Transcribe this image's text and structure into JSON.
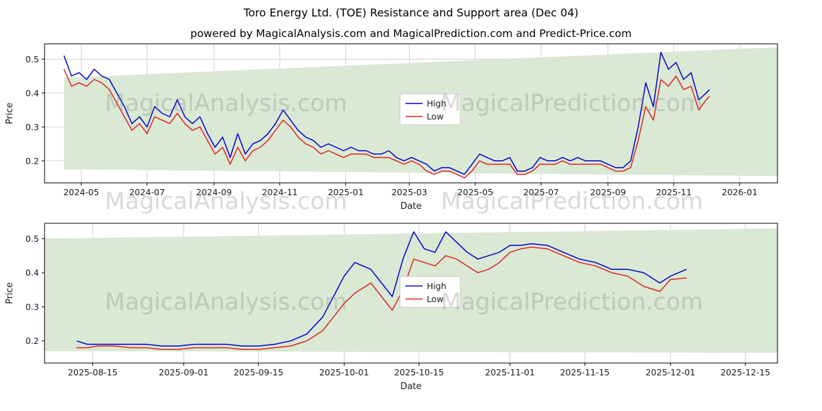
{
  "figure": {
    "title": "Toro Energy Ltd. (TOE) Resistance and Support area (Dec 04)",
    "subtitle": "powered by MagicalAnalysis.com and MagicalPrediction.com and Predict-Price.com"
  },
  "watermarks": {
    "analysis": "MagicalAnalysis.com",
    "prediction": "MagicalPrediction.com"
  },
  "colors": {
    "high": "#0000cc",
    "low": "#e02222",
    "band": "#d9e9d4",
    "grid": "#cccccc",
    "axis": "#000000",
    "tick_text": "#1a1a1a"
  },
  "chart_data": [
    {
      "type": "line",
      "xlabel": "Date",
      "ylabel": "Price",
      "xlim": [
        "2024-03-28",
        "2026-02-05"
      ],
      "ylim": [
        0.135,
        0.545
      ],
      "grid": true,
      "legend": {
        "x": 0.485,
        "y": 0.36
      },
      "xticks": [
        {
          "v": "2024-05-01",
          "label": "2024-05"
        },
        {
          "v": "2024-07-01",
          "label": "2024-07"
        },
        {
          "v": "2024-09-01",
          "label": "2024-09"
        },
        {
          "v": "2024-11-01",
          "label": "2024-11"
        },
        {
          "v": "2025-01-01",
          "label": "2025-01"
        },
        {
          "v": "2025-03-01",
          "label": "2025-03"
        },
        {
          "v": "2025-05-01",
          "label": "2025-05"
        },
        {
          "v": "2025-07-01",
          "label": "2025-07"
        },
        {
          "v": "2025-09-01",
          "label": "2025-09"
        },
        {
          "v": "2025-11-01",
          "label": "2025-11"
        },
        {
          "v": "2026-01-01",
          "label": "2026-01"
        }
      ],
      "yticks": [
        0.2,
        0.3,
        0.4,
        0.5
      ],
      "band": {
        "x": [
          "2024-04-15",
          "2026-02-05"
        ],
        "top": [
          0.445,
          0.535
        ],
        "bottom": [
          0.175,
          0.155
        ]
      },
      "x": [
        "2024-04-15",
        "2024-04-22",
        "2024-04-29",
        "2024-05-06",
        "2024-05-13",
        "2024-05-20",
        "2024-05-27",
        "2024-06-03",
        "2024-06-10",
        "2024-06-17",
        "2024-06-24",
        "2024-07-01",
        "2024-07-08",
        "2024-07-15",
        "2024-07-22",
        "2024-07-29",
        "2024-08-05",
        "2024-08-12",
        "2024-08-19",
        "2024-08-26",
        "2024-09-02",
        "2024-09-09",
        "2024-09-16",
        "2024-09-23",
        "2024-09-30",
        "2024-10-07",
        "2024-10-14",
        "2024-10-21",
        "2024-10-28",
        "2024-11-04",
        "2024-11-11",
        "2024-11-18",
        "2024-11-25",
        "2024-12-02",
        "2024-12-09",
        "2024-12-16",
        "2024-12-23",
        "2024-12-30",
        "2025-01-06",
        "2025-01-13",
        "2025-01-20",
        "2025-01-27",
        "2025-02-03",
        "2025-02-10",
        "2025-02-17",
        "2025-02-24",
        "2025-03-03",
        "2025-03-10",
        "2025-03-17",
        "2025-03-24",
        "2025-03-31",
        "2025-04-07",
        "2025-04-14",
        "2025-04-21",
        "2025-04-28",
        "2025-05-05",
        "2025-05-12",
        "2025-05-19",
        "2025-05-26",
        "2025-06-02",
        "2025-06-09",
        "2025-06-16",
        "2025-06-23",
        "2025-06-30",
        "2025-07-07",
        "2025-07-14",
        "2025-07-21",
        "2025-07-28",
        "2025-08-04",
        "2025-08-11",
        "2025-08-18",
        "2025-08-25",
        "2025-09-01",
        "2025-09-08",
        "2025-09-15",
        "2025-09-22",
        "2025-09-29",
        "2025-10-06",
        "2025-10-13",
        "2025-10-20",
        "2025-10-27",
        "2025-11-03",
        "2025-11-10",
        "2025-11-17",
        "2025-11-24",
        "2025-12-01",
        "2025-12-04"
      ],
      "series": [
        {
          "name": "High",
          "color": "high",
          "values": [
            0.51,
            0.45,
            0.46,
            0.44,
            0.47,
            0.45,
            0.44,
            0.4,
            0.36,
            0.31,
            0.33,
            0.3,
            0.36,
            0.34,
            0.33,
            0.38,
            0.33,
            0.31,
            0.33,
            0.28,
            0.24,
            0.27,
            0.21,
            0.28,
            0.22,
            0.25,
            0.26,
            0.28,
            0.31,
            0.35,
            0.32,
            0.29,
            0.27,
            0.26,
            0.24,
            0.25,
            0.24,
            0.23,
            0.24,
            0.23,
            0.23,
            0.22,
            0.22,
            0.23,
            0.21,
            0.2,
            0.21,
            0.2,
            0.19,
            0.17,
            0.18,
            0.18,
            0.17,
            0.16,
            0.19,
            0.22,
            0.21,
            0.2,
            0.2,
            0.21,
            0.17,
            0.17,
            0.18,
            0.21,
            0.2,
            0.2,
            0.21,
            0.2,
            0.21,
            0.2,
            0.2,
            0.2,
            0.19,
            0.18,
            0.18,
            0.2,
            0.3,
            0.43,
            0.36,
            0.52,
            0.47,
            0.49,
            0.44,
            0.46,
            0.38,
            0.4,
            0.41
          ]
        },
        {
          "name": "Low",
          "color": "low",
          "values": [
            0.47,
            0.42,
            0.43,
            0.42,
            0.44,
            0.43,
            0.41,
            0.37,
            0.33,
            0.29,
            0.31,
            0.28,
            0.33,
            0.32,
            0.31,
            0.34,
            0.31,
            0.29,
            0.3,
            0.26,
            0.22,
            0.24,
            0.19,
            0.24,
            0.2,
            0.23,
            0.24,
            0.26,
            0.29,
            0.32,
            0.3,
            0.27,
            0.25,
            0.24,
            0.22,
            0.23,
            0.22,
            0.21,
            0.22,
            0.22,
            0.22,
            0.21,
            0.21,
            0.21,
            0.2,
            0.19,
            0.2,
            0.19,
            0.17,
            0.16,
            0.17,
            0.17,
            0.16,
            0.15,
            0.17,
            0.2,
            0.19,
            0.19,
            0.19,
            0.19,
            0.16,
            0.16,
            0.17,
            0.19,
            0.19,
            0.19,
            0.2,
            0.19,
            0.19,
            0.19,
            0.19,
            0.19,
            0.18,
            0.17,
            0.17,
            0.18,
            0.26,
            0.36,
            0.32,
            0.44,
            0.42,
            0.45,
            0.41,
            0.42,
            0.35,
            0.38,
            0.39
          ]
        }
      ]
    },
    {
      "type": "line",
      "xlabel": "Date",
      "ylabel": "Price",
      "xlim": [
        "2025-08-06",
        "2025-12-21"
      ],
      "ylim": [
        0.135,
        0.545
      ],
      "grid": true,
      "legend": {
        "x": 0.485,
        "y": 0.38
      },
      "xticks": [
        {
          "v": "2025-08-15",
          "label": "2025-08-15"
        },
        {
          "v": "2025-09-01",
          "label": "2025-09-01"
        },
        {
          "v": "2025-09-15",
          "label": "2025-09-15"
        },
        {
          "v": "2025-10-01",
          "label": "2025-10-01"
        },
        {
          "v": "2025-10-15",
          "label": "2025-10-15"
        },
        {
          "v": "2025-11-01",
          "label": "2025-11-01"
        },
        {
          "v": "2025-11-15",
          "label": "2025-11-15"
        },
        {
          "v": "2025-12-01",
          "label": "2025-12-01"
        },
        {
          "v": "2025-12-15",
          "label": "2025-12-15"
        }
      ],
      "yticks": [
        0.2,
        0.3,
        0.4,
        0.5
      ],
      "band": {
        "x": [
          "2025-08-06",
          "2025-12-21"
        ],
        "top": [
          0.5,
          0.53
        ],
        "bottom": [
          0.17,
          0.165
        ]
      },
      "x": [
        "2025-08-12",
        "2025-08-14",
        "2025-08-16",
        "2025-08-19",
        "2025-08-22",
        "2025-08-25",
        "2025-08-28",
        "2025-08-31",
        "2025-09-03",
        "2025-09-06",
        "2025-09-09",
        "2025-09-12",
        "2025-09-15",
        "2025-09-18",
        "2025-09-21",
        "2025-09-24",
        "2025-09-27",
        "2025-09-29",
        "2025-10-01",
        "2025-10-03",
        "2025-10-06",
        "2025-10-08",
        "2025-10-10",
        "2025-10-12",
        "2025-10-14",
        "2025-10-16",
        "2025-10-18",
        "2025-10-20",
        "2025-10-22",
        "2025-10-24",
        "2025-10-26",
        "2025-10-28",
        "2025-10-30",
        "2025-11-01",
        "2025-11-03",
        "2025-11-05",
        "2025-11-08",
        "2025-11-11",
        "2025-11-14",
        "2025-11-17",
        "2025-11-20",
        "2025-11-23",
        "2025-11-26",
        "2025-11-29",
        "2025-12-01",
        "2025-12-04"
      ],
      "series": [
        {
          "name": "High",
          "color": "high",
          "values": [
            0.2,
            0.19,
            0.19,
            0.19,
            0.19,
            0.19,
            0.185,
            0.185,
            0.19,
            0.19,
            0.19,
            0.185,
            0.185,
            0.19,
            0.2,
            0.22,
            0.27,
            0.33,
            0.39,
            0.43,
            0.41,
            0.37,
            0.33,
            0.44,
            0.52,
            0.47,
            0.46,
            0.52,
            0.49,
            0.46,
            0.44,
            0.45,
            0.46,
            0.48,
            0.48,
            0.485,
            0.48,
            0.46,
            0.44,
            0.43,
            0.41,
            0.41,
            0.4,
            0.37,
            0.39,
            0.41
          ]
        },
        {
          "name": "Low",
          "color": "low",
          "values": [
            0.18,
            0.18,
            0.185,
            0.185,
            0.18,
            0.18,
            0.175,
            0.175,
            0.18,
            0.18,
            0.18,
            0.175,
            0.175,
            0.18,
            0.185,
            0.2,
            0.23,
            0.27,
            0.31,
            0.34,
            0.37,
            0.33,
            0.29,
            0.35,
            0.44,
            0.43,
            0.42,
            0.45,
            0.44,
            0.42,
            0.4,
            0.41,
            0.43,
            0.46,
            0.47,
            0.475,
            0.47,
            0.45,
            0.43,
            0.42,
            0.4,
            0.39,
            0.36,
            0.345,
            0.38,
            0.385
          ]
        }
      ]
    }
  ]
}
